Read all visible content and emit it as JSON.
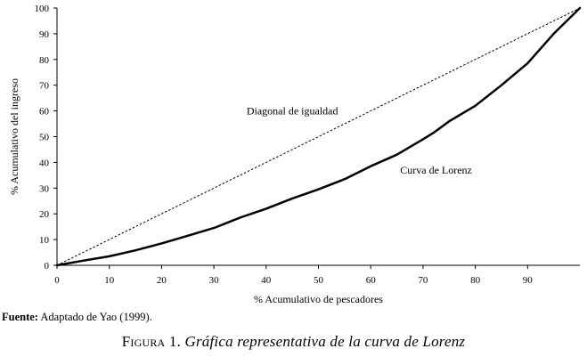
{
  "chart_data": {
    "type": "line",
    "xlabel": "% Acumulativo de pescadores",
    "ylabel": "% Acumulativo del ingreso",
    "xlim": [
      0,
      100
    ],
    "ylim": [
      0,
      100
    ],
    "x_ticks": [
      "0",
      "10",
      "20",
      "30",
      "40",
      "50",
      "60",
      "70",
      "80",
      "90"
    ],
    "y_ticks": [
      "0",
      "10",
      "20",
      "30",
      "40",
      "50",
      "60",
      "70",
      "80",
      "90",
      "100"
    ],
    "grid": false,
    "series": [
      {
        "name": "Diagonal de igualdad",
        "style": "dashed",
        "x": [
          0,
          100
        ],
        "y": [
          0,
          100
        ]
      },
      {
        "name": "Curva de Lorenz",
        "style": "solid",
        "x": [
          0,
          5,
          10,
          15,
          20,
          25,
          30,
          35,
          40,
          45,
          50,
          55,
          60,
          65,
          70,
          72,
          75,
          80,
          85,
          90,
          95,
          100
        ],
        "y": [
          0,
          1.8,
          3.5,
          5.8,
          8.5,
          11.5,
          14.5,
          18.5,
          22,
          26,
          29.5,
          33.5,
          38.5,
          43,
          49,
          51.5,
          56,
          62,
          70,
          78.5,
          90,
          100
        ]
      }
    ],
    "annotations": [
      {
        "text": "Diagonal de igualdad",
        "x": 45,
        "y": 60
      },
      {
        "text": "Curva de Lorenz",
        "x": 72.5,
        "y": 37
      }
    ]
  },
  "source": {
    "label": "Fuente:",
    "text": " Adaptado de Yao (1999)."
  },
  "caption": {
    "figure": "Figura 1.",
    "title": "Gráfica representativa de la curva de Lorenz"
  }
}
